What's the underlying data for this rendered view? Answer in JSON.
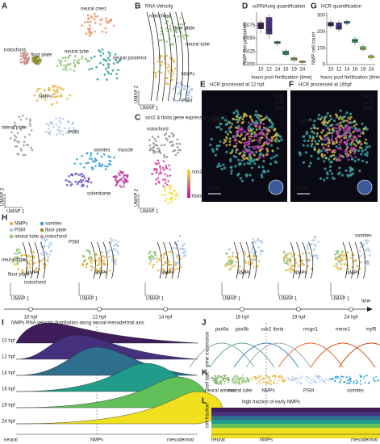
{
  "panels": {
    "A": {
      "letter": "A",
      "labels": [
        "neural crest",
        "notochord",
        "floor plate",
        "neural tube",
        "neural posterior",
        "NMPs",
        "lateral plate",
        "PSM",
        "somites",
        "muscle",
        "sclerotome"
      ],
      "axis_x": "UMAP 1",
      "axis_y": "UMAP 2"
    },
    "B": {
      "letter": "B",
      "title": "RNA Velocity",
      "labels": [
        "notochord",
        "floor plate",
        "neural tube",
        "NMPs",
        "PSM"
      ],
      "axis_x": "UMAP 1",
      "axis_y": "UMAP 2"
    },
    "C": {
      "letter": "C",
      "title": "sox2 & tbxta gene expression gradient",
      "labels": [
        "notochord"
      ],
      "legend": [
        "sox2",
        "tbxta"
      ],
      "axis_x": "UMAP 1",
      "axis_y": "UMAP 2"
    },
    "E": {
      "letter": "E",
      "title": "HCR processed at 12 hpf",
      "label": "NMPs",
      "channels": [
        "dapi",
        "sox2",
        "tbxta"
      ],
      "scale": "20 µm"
    },
    "F": {
      "letter": "F",
      "title": "HCR processed at 16hpf",
      "label": "NMPs",
      "channels": [
        "dapi",
        "sox2",
        "tbxta"
      ],
      "scale": "20 µm"
    },
    "H": {
      "letter": "H",
      "legend": [
        "NMPs",
        "somites",
        "PSM",
        "floor plate",
        "neural tube",
        "notochord"
      ],
      "times": [
        "10 hpf",
        "12 hpf",
        "14 hpf",
        "16 hpf",
        "19 hpf",
        "24 hpf"
      ],
      "time_label": "time",
      "axis_x": "UMAP 1",
      "axis_y": "UMAP 2"
    },
    "I": {
      "letter": "I",
      "title": "NMPs RNA velocity distribution along neural-mesodermal axis",
      "axis": [
        "neural",
        "NMPs",
        "mesodermal"
      ]
    },
    "J": {
      "letter": "J",
      "ylabel": "gene expression",
      "genes": [
        "pax6a",
        "pax6b",
        "sox2",
        "tbxta",
        "msgn1",
        "meox1",
        "myf5"
      ]
    },
    "K": {
      "letter": "K",
      "ylabel": "cell type",
      "types": [
        "neural anterior",
        "neural tube",
        "NMPs",
        "PSM",
        "somites"
      ]
    },
    "L": {
      "letter": "L",
      "ylabel": "cell fraction",
      "annotation": "high fraction of early NMPs",
      "axis": [
        "neural",
        "NMPs",
        "mesodermal"
      ]
    }
  },
  "chart_data": [
    {
      "type": "box",
      "letter": "D",
      "title": "scRNAseq quantification",
      "xlabel": "hours post fertilization (time)",
      "ylabel": "NMP cell proportion",
      "categories": [
        "10",
        "12",
        "14",
        "16",
        "19",
        "24"
      ],
      "colors": [
        "#3f1d5a",
        "#45307e",
        "#3d8fa0",
        "#2e9c6a",
        "#8acb4a",
        "#e6e12a"
      ],
      "min": [
        0.06,
        0.05,
        0.035,
        0.015,
        0.005,
        0.002
      ],
      "q1": [
        0.068,
        0.058,
        0.04,
        0.019,
        0.008,
        0.004
      ],
      "median": [
        0.074,
        0.066,
        0.042,
        0.022,
        0.011,
        0.005
      ],
      "q3": [
        0.08,
        0.09,
        0.044,
        0.026,
        0.013,
        0.007
      ],
      "max": [
        0.085,
        0.095,
        0.047,
        0.03,
        0.016,
        0.009
      ],
      "ylim": [
        0,
        0.1
      ],
      "yticks": [
        {
          "value": 0,
          "label": "0.000"
        },
        {
          "value": 0.025,
          "label": "0.025"
        },
        {
          "value": 0.05,
          "label": "0.050"
        },
        {
          "value": 0.075,
          "label": "0.075"
        }
      ]
    },
    {
      "type": "box",
      "letter": "G",
      "title": "HCR quantification",
      "xlabel": "hours post fertilization (time)",
      "ylabel": "NMP cell count",
      "categories": [
        "10",
        "12",
        "14",
        "16",
        "19",
        "24"
      ],
      "colors": [
        "#3f1d5a",
        "#45307e",
        "#3d8fa0",
        "#2e9c6a",
        "#8acb4a",
        "#e6e12a"
      ],
      "min": [
        220,
        200,
        240,
        120,
        80,
        30
      ],
      "q1": [
        235,
        215,
        250,
        135,
        90,
        40
      ],
      "median": [
        245,
        225,
        258,
        145,
        100,
        48
      ],
      "q3": [
        258,
        255,
        265,
        155,
        110,
        55
      ],
      "max": [
        270,
        270,
        275,
        170,
        125,
        65
      ],
      "ylim": [
        0,
        320
      ],
      "yticks": [
        0,
        100,
        200,
        300
      ]
    }
  ]
}
